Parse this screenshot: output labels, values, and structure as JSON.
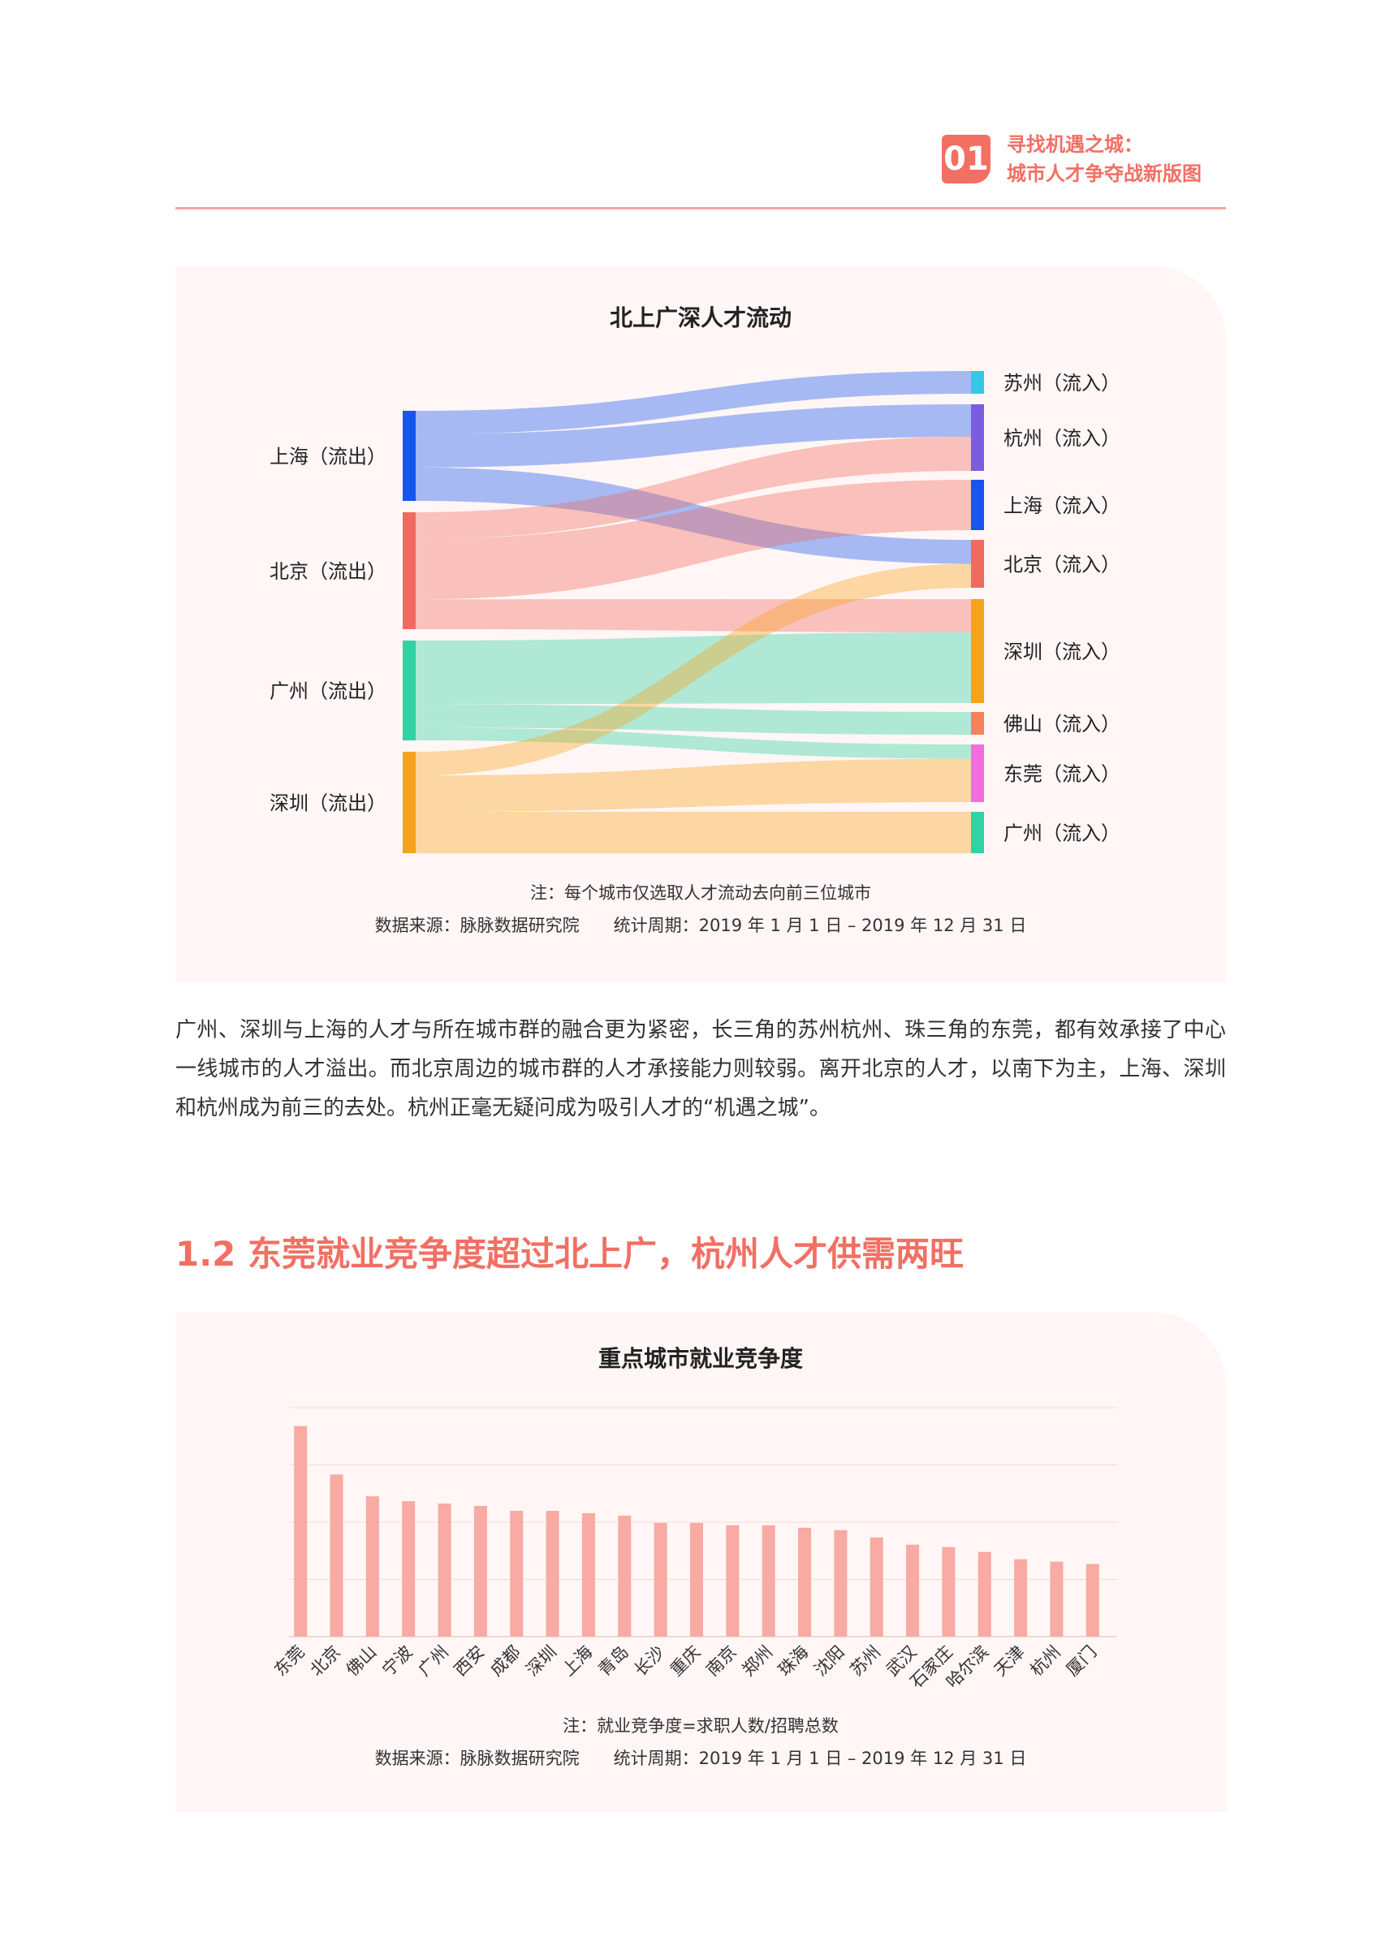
{
  "header": {
    "badge": "01",
    "title_line1": "寻找机遇之城：",
    "title_line2": "城市人才争夺战新版图"
  },
  "sankey": {
    "title": "北上广深人才流动",
    "note": "注：每个城市仅选取人才流动去向前三位城市",
    "source": "数据来源：脉脉数据研究院　　统计周期：2019 年 1 月 1 日 – 2019 年 12 月 31 日",
    "colors": {
      "上海流出": "#1556f0",
      "北京流出": "#f06a5f",
      "广州流出": "#2fd3a4",
      "深圳流出": "#f6a21c",
      "苏州流入": "#33c8e6",
      "杭州流入": "#7b5ce0",
      "上海流入": "#1556f0",
      "北京流入": "#f06a5f",
      "深圳流入": "#f6a21c",
      "佛山流入": "#f4835a",
      "东莞流入": "#f46de0",
      "广州流入": "#2fd3a4"
    },
    "sources": [
      "上海（流出）",
      "北京（流出）",
      "广州（流出）",
      "深圳（流出）"
    ],
    "targets": [
      "苏州（流入）",
      "杭州（流入）",
      "上海（流入）",
      "北京（流入）",
      "深圳（流入）",
      "佛山（流入）",
      "东莞（流入）",
      "广州（流入）"
    ]
  },
  "paragraph": "广州、深圳与上海的人才与所在城市群的融合更为紧密，长三角的苏州杭州、珠三角的东莞，都有效承接了中心一线城市的人才溢出。而北京周边的城市群的人才承接能力则较弱。离开北京的人才，以南下为主，上海、深圳和杭州成为前三的去处。杭州正毫无疑问成为吸引人才的“机遇之城”。",
  "section_heading": "1.2 东莞就业竞争度超过北上广，杭州人才供需两旺",
  "bar_chart": {
    "note": "注：就业竞争度=求职人数/招聘总数",
    "source": "数据来源：脉脉数据研究院　　统计周期：2019 年 1 月 1 日 – 2019 年 12 月 31 日",
    "color": "#f8aaa3"
  },
  "chart_data": [
    {
      "type": "sankey",
      "title": "北上广深人才流动",
      "links": [
        {
          "source": "上海（流出）",
          "target": "苏州（流入）",
          "value": 28
        },
        {
          "source": "上海（流出）",
          "target": "杭州（流入）",
          "value": 40
        },
        {
          "source": "上海（流出）",
          "target": "北京（流入）",
          "value": 40
        },
        {
          "source": "北京（流出）",
          "target": "杭州（流入）",
          "value": 42
        },
        {
          "source": "北京（流出）",
          "target": "上海（流入）",
          "value": 95
        },
        {
          "source": "北京（流出）",
          "target": "深圳（流入）",
          "value": 47
        },
        {
          "source": "广州（流出）",
          "target": "深圳（流入）",
          "value": 100
        },
        {
          "source": "广州（流出）",
          "target": "佛山（流入）",
          "value": 37
        },
        {
          "source": "广州（流出）",
          "target": "东莞（流入）",
          "value": 20
        },
        {
          "source": "深圳（流出）",
          "target": "北京（流入）",
          "value": 40
        },
        {
          "source": "深圳（流出）",
          "target": "东莞（流入）",
          "value": 61
        },
        {
          "source": "深圳（流出）",
          "target": "广州（流入）",
          "value": 70
        }
      ]
    },
    {
      "type": "bar",
      "title": "重点城市就业竞争度",
      "categories": [
        "东莞",
        "北京",
        "佛山",
        "宁波",
        "广州",
        "西安",
        "成都",
        "深圳",
        "上海",
        "青岛",
        "长沙",
        "重庆",
        "南京",
        "郑州",
        "珠海",
        "沈阳",
        "苏州",
        "武汉",
        "石家庄",
        "哈尔滨",
        "天津",
        "杭州",
        "厦门"
      ],
      "values": [
        87,
        67,
        58,
        56,
        55,
        54,
        52,
        52,
        51,
        50,
        47,
        47,
        46,
        46,
        45,
        44,
        41,
        38,
        37,
        35,
        32,
        31,
        30
      ],
      "ylim": [
        0,
        100
      ]
    }
  ]
}
